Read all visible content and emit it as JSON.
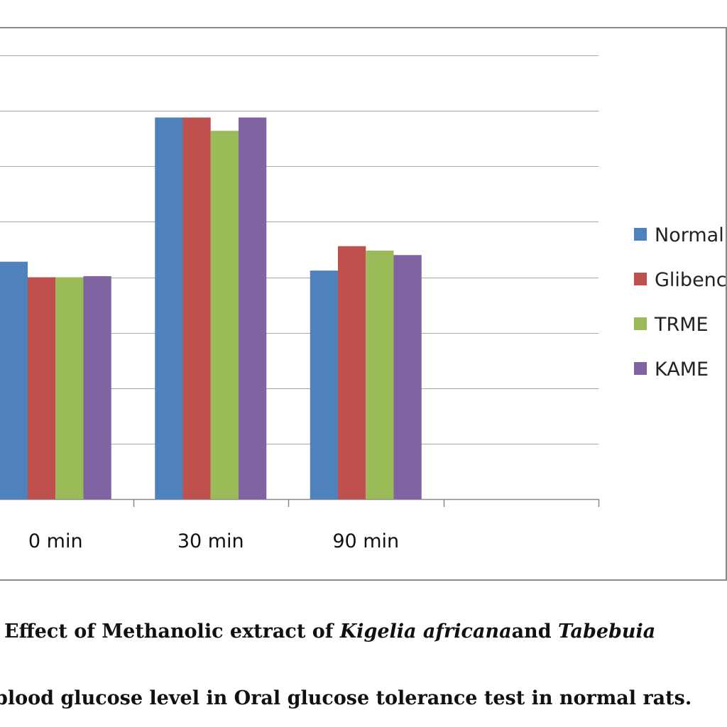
{
  "chart_data": {
    "type": "bar",
    "categories": [
      "0 min",
      "30 min",
      "90 min"
    ],
    "series": [
      {
        "name": "Normal",
        "color": "#4f81bd",
        "values": [
          107,
          172,
          103
        ]
      },
      {
        "name": "Glibenclamide",
        "color": "#c0504d",
        "values": [
          100,
          172,
          114
        ]
      },
      {
        "name": "TRME",
        "color": "#9bbb59",
        "values": [
          100,
          166,
          112
        ]
      },
      {
        "name": "KAME",
        "color": "#8064a2",
        "values": [
          100.5,
          172,
          110
        ]
      }
    ],
    "ylim": [
      0,
      200
    ],
    "grid": true,
    "legend": "right"
  },
  "caption": {
    "line1_part1": "Effect of Methanolic extract of ",
    "line1_italic1": "Kigelia africana",
    "line1_part2": "and ",
    "line1_italic2": "Tabebuia",
    "line2": "blood glucose level in Oral glucose tolerance test in normal rats."
  }
}
